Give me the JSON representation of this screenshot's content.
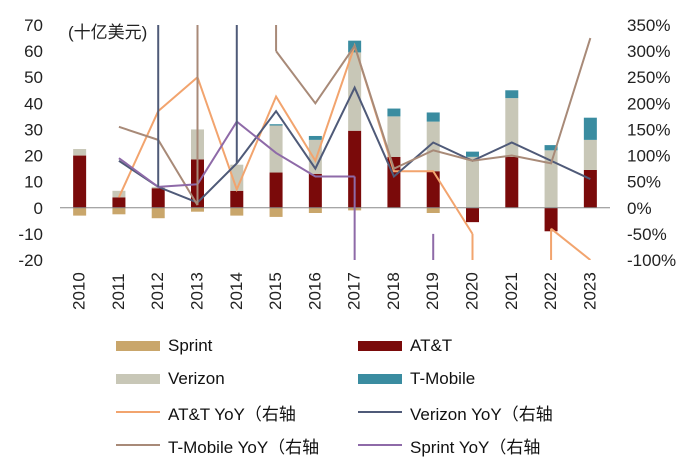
{
  "chart_data": {
    "type": "bar",
    "stacked": true,
    "unit_label": "(十亿美元)",
    "categories": [
      "2010",
      "2011",
      "2012",
      "2013",
      "2014",
      "2015",
      "2016",
      "2017",
      "2018",
      "2019",
      "2020",
      "2021",
      "2022",
      "2023"
    ],
    "left_axis": {
      "ylim": [
        -20,
        70
      ],
      "ticks": [
        "-20",
        "-10",
        "0",
        "10",
        "20",
        "30",
        "40",
        "50",
        "60",
        "70"
      ]
    },
    "right_axis": {
      "ylim": [
        -100,
        350
      ],
      "ticks": [
        "-100%",
        "-50%",
        "0%",
        "50%",
        "100%",
        "150%",
        "200%",
        "250%",
        "300%",
        "350%"
      ]
    },
    "bar_series": [
      {
        "name": "Sprint",
        "color": "#C9A66B",
        "values": [
          -3,
          -2.5,
          -4,
          -1.5,
          -3,
          -3.5,
          -2,
          -1,
          0,
          -2,
          0,
          0,
          0,
          0
        ]
      },
      {
        "name": "AT&T",
        "color": "#7A0A0A",
        "values": [
          20,
          4,
          7.5,
          18.5,
          6.5,
          13.5,
          13,
          29.5,
          19.5,
          14,
          -5.5,
          19.5,
          -9,
          14.5
        ]
      },
      {
        "name": "Verizon",
        "color": "#C8C7B7",
        "values": [
          2.5,
          2.5,
          0.5,
          11.5,
          10,
          18,
          13,
          30,
          15.5,
          19,
          19.5,
          22.5,
          22,
          11.5
        ]
      },
      {
        "name": "T-Mobile",
        "color": "#3A8CA0",
        "values": [
          0,
          0,
          0,
          0,
          0,
          0.5,
          1.5,
          4.5,
          3,
          3.5,
          2,
          3,
          2,
          8.5
        ]
      }
    ],
    "line_series": [
      {
        "name": "AT&T YoY（右轴",
        "color": "#F2A46E",
        "values": [
          null,
          20,
          185,
          250,
          35,
          213,
          90,
          310,
          70,
          70,
          -50,
          null,
          -40,
          null
        ]
      },
      {
        "name": "Verizon YoY（右轴",
        "color": "#4F5A78",
        "values": [
          null,
          90,
          40,
          10,
          85,
          185,
          75,
          230,
          60,
          125,
          90,
          125,
          90,
          55
        ]
      },
      {
        "name": "T-Mobile YoY（右轴",
        "color": "#A88A78",
        "values": [
          null,
          155,
          130,
          5,
          null,
          300,
          200,
          310,
          75,
          110,
          90,
          100,
          85,
          325
        ]
      },
      {
        "name": "Sprint YoY（右轴",
        "color": "#8E6AA8",
        "values": [
          null,
          95,
          40,
          45,
          165,
          105,
          60,
          60,
          null,
          null,
          null,
          null,
          null,
          null
        ]
      }
    ],
    "line_segments_offscale": [
      {
        "series": "Verizon YoY（右轴",
        "from": [
          "2012",
          40
        ],
        "to": [
          "2012",
          350
        ]
      },
      {
        "series": "Verizon YoY（右轴",
        "from": [
          "2014",
          85
        ],
        "to": [
          "2014",
          350
        ]
      },
      {
        "series": "T-Mobile YoY（右轴",
        "from": [
          "2013",
          5
        ],
        "to": [
          "2013",
          350
        ]
      },
      {
        "series": "T-Mobile YoY（右轴",
        "from": [
          "2015",
          300
        ],
        "to": [
          "2015",
          350
        ]
      },
      {
        "series": "Sprint YoY（右轴",
        "from": [
          "2017",
          60
        ],
        "to": [
          "2017",
          -100
        ]
      },
      {
        "series": "Sprint YoY（右轴",
        "from": [
          "2019",
          -100
        ],
        "to": [
          "2019",
          -50
        ]
      },
      {
        "series": "AT&T YoY（右轴",
        "from": [
          "2020",
          -50
        ],
        "to": [
          "2020",
          -100
        ]
      },
      {
        "series": "AT&T YoY（右轴",
        "from": [
          "2022",
          -40
        ],
        "to": [
          "2022",
          -100
        ]
      },
      {
        "series": "AT&T YoY（右轴",
        "from": [
          "2022",
          -40
        ],
        "to": [
          "2023",
          -100
        ]
      }
    ]
  },
  "legend": {
    "sprint": "Sprint",
    "att": "AT&T",
    "verizon": "Verizon",
    "tmobile": "T-Mobile",
    "att_yoy": "AT&T YoY（右轴",
    "verizon_yoy": "Verizon YoY（右轴",
    "tmobile_yoy": "T-Mobile YoY（右轴",
    "sprint_yoy": "Sprint YoY（右轴"
  }
}
